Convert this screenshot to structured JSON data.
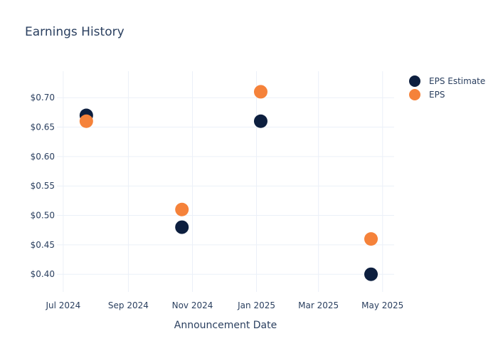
{
  "chart_data": {
    "type": "scatter",
    "title": "Earnings History",
    "xlabel": "Announcement Date",
    "ylabel": "",
    "x_axis_type": "date",
    "xlim": [
      "2024-06-25",
      "2025-05-12"
    ],
    "ylim": [
      0.37,
      0.745
    ],
    "x_ticks": [
      {
        "value": "2024-07-01",
        "label": "Jul 2024"
      },
      {
        "value": "2024-09-01",
        "label": "Sep 2024"
      },
      {
        "value": "2024-11-01",
        "label": "Nov 2024"
      },
      {
        "value": "2025-01-01",
        "label": "Jan 2025"
      },
      {
        "value": "2025-03-01",
        "label": "Mar 2025"
      },
      {
        "value": "2025-05-01",
        "label": "May 2025"
      }
    ],
    "y_ticks": [
      {
        "value": 0.4,
        "label": "$0.40"
      },
      {
        "value": 0.45,
        "label": "$0.45"
      },
      {
        "value": 0.5,
        "label": "$0.50"
      },
      {
        "value": 0.55,
        "label": "$0.55"
      },
      {
        "value": 0.6,
        "label": "$0.60"
      },
      {
        "value": 0.65,
        "label": "$0.65"
      },
      {
        "value": 0.7,
        "label": "$0.70"
      }
    ],
    "grid": true,
    "legend_position": "top-right",
    "series": [
      {
        "name": "EPS Estimate",
        "color": "#0d1f3f",
        "points": [
          {
            "x": "2024-07-23",
            "y": 0.67
          },
          {
            "x": "2024-10-22",
            "y": 0.48
          },
          {
            "x": "2025-01-05",
            "y": 0.66
          },
          {
            "x": "2025-04-20",
            "y": 0.4
          }
        ]
      },
      {
        "name": "EPS",
        "color": "#f5823a",
        "points": [
          {
            "x": "2024-07-23",
            "y": 0.66
          },
          {
            "x": "2024-10-22",
            "y": 0.51
          },
          {
            "x": "2025-01-05",
            "y": 0.71
          },
          {
            "x": "2025-04-20",
            "y": 0.46
          }
        ]
      }
    ]
  }
}
